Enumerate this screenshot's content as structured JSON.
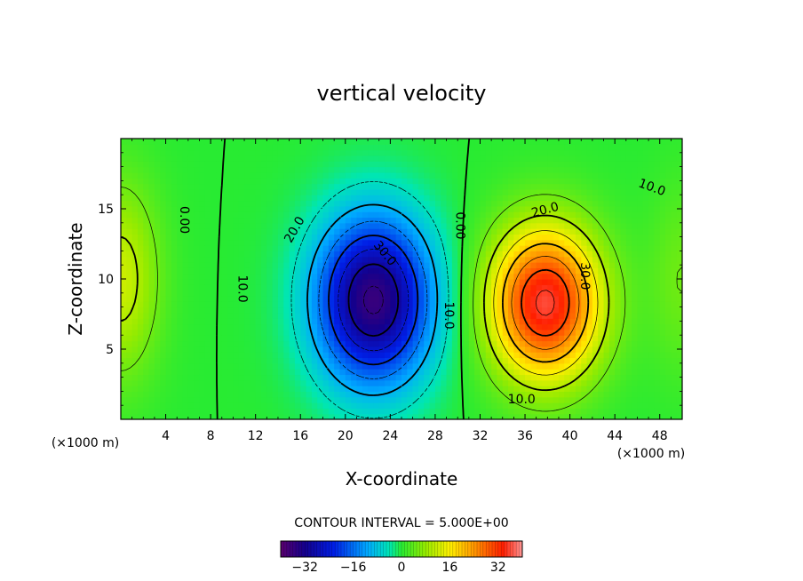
{
  "chart_data": {
    "type": "heatmap",
    "title": "vertical velocity",
    "xlabel": "X-coordinate",
    "ylabel": "Z-coordinate",
    "x_unit": "(×1000 m)",
    "z_unit": "(×1000 m)",
    "xlim": [
      0,
      50
    ],
    "ylim": [
      0,
      20
    ],
    "x_ticks": [
      4,
      8,
      12,
      16,
      20,
      24,
      28,
      32,
      36,
      40,
      44,
      48
    ],
    "y_ticks": [
      5,
      10,
      15
    ],
    "contour_interval_text": "CONTOUR INTERVAL = 5.000E+00",
    "contour_interval": 5,
    "fields": [
      {
        "name": "downdraft",
        "center_x": 22.5,
        "center_z": 8.5,
        "peak": -36
      },
      {
        "name": "updraft",
        "center_x": 37.8,
        "center_z": 8.3,
        "peak": 36
      }
    ],
    "contour_labels": [
      {
        "text": "0.00",
        "x": 5.6,
        "z": 14.2,
        "rotate": 90
      },
      {
        "text": "0.00",
        "x": 30.2,
        "z": 13.8,
        "rotate": 90
      },
      {
        "text": "10.0",
        "x": 10.8,
        "z": 9.3,
        "rotate": 90
      },
      {
        "text": "20.0",
        "x": 15.5,
        "z": 13.5,
        "rotate": -60
      },
      {
        "text": "30.0",
        "x": 23.5,
        "z": 11.8,
        "rotate": 50
      },
      {
        "text": "10.0",
        "x": 29.2,
        "z": 7.4,
        "rotate": 90
      },
      {
        "text": "20.0",
        "x": 37.8,
        "z": 14.9,
        "rotate": -15
      },
      {
        "text": "30.0",
        "x": 41.3,
        "z": 10.2,
        "rotate": 90
      },
      {
        "text": "10.0",
        "x": 47.3,
        "z": 16.5,
        "rotate": 20
      },
      {
        "text": "10.0",
        "x": 35.7,
        "z": 1.4,
        "rotate": 0
      }
    ],
    "colorbar": {
      "min": -40,
      "max": 40,
      "tick_values": [
        -32,
        -16,
        0,
        16,
        32
      ],
      "tick_labels": [
        "−32",
        "−16",
        "0",
        "16",
        "32"
      ]
    }
  }
}
